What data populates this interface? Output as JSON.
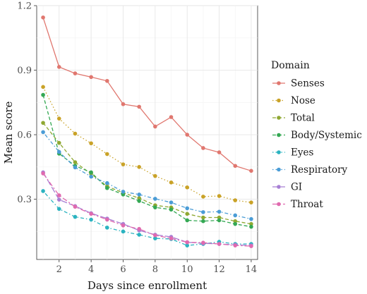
{
  "chart_data": {
    "type": "line",
    "xlabel": "Days since enrollment",
    "ylabel": "Mean score",
    "xlim": [
      0.6,
      14.4
    ],
    "ylim": [
      0.02,
      1.2
    ],
    "x_ticks": [
      2,
      4,
      6,
      8,
      10,
      12,
      14
    ],
    "y_ticks": [
      0.3,
      0.6,
      0.9,
      1.2
    ],
    "x_tick_labels": [
      "2",
      "4",
      "6",
      "8",
      "10",
      "12",
      "14"
    ],
    "y_tick_labels": [
      "0.3",
      "0.6",
      "0.9",
      "1.2"
    ],
    "grid": true,
    "legend_title": "Domain",
    "legend_position": "right",
    "x": [
      1,
      2,
      3,
      4,
      5,
      6,
      7,
      8,
      9,
      10,
      11,
      12,
      13,
      14
    ],
    "series": [
      {
        "name": "Senses",
        "color": "#E0776F",
        "dash": "solid",
        "values": [
          1.145,
          0.915,
          0.885,
          0.868,
          0.85,
          0.742,
          0.73,
          0.638,
          0.682,
          0.6,
          0.538,
          0.518,
          0.455,
          0.432
        ]
      },
      {
        "name": "Nose",
        "color": "#C9A227",
        "dash": "dotted",
        "values": [
          0.822,
          0.675,
          0.605,
          0.56,
          0.51,
          0.462,
          0.45,
          0.408,
          0.378,
          0.355,
          0.312,
          0.315,
          0.295,
          0.285
        ]
      },
      {
        "name": "Total",
        "color": "#8FA832",
        "dash": "dashed",
        "values": [
          0.655,
          0.562,
          0.472,
          0.418,
          0.36,
          0.33,
          0.305,
          0.272,
          0.262,
          0.232,
          0.215,
          0.215,
          0.198,
          0.185
        ]
      },
      {
        "name": "Body/Systemic",
        "color": "#34A853",
        "dash": "dashed",
        "values": [
          0.785,
          0.512,
          0.455,
          0.425,
          0.352,
          0.322,
          0.292,
          0.262,
          0.252,
          0.202,
          0.198,
          0.202,
          0.185,
          0.172
        ]
      },
      {
        "name": "Eyes",
        "color": "#2BB3C0",
        "dash": "dotdash",
        "values": [
          0.338,
          0.255,
          0.218,
          0.205,
          0.168,
          0.15,
          0.135,
          0.118,
          0.115,
          0.085,
          0.092,
          0.102,
          0.092,
          0.092
        ]
      },
      {
        "name": "Respiratory",
        "color": "#4A9CD6",
        "dash": "dotdash",
        "values": [
          0.612,
          0.52,
          0.448,
          0.405,
          0.375,
          0.335,
          0.322,
          0.302,
          0.285,
          0.258,
          0.24,
          0.242,
          0.225,
          0.208
        ]
      },
      {
        "name": "GI",
        "color": "#A77FD4",
        "dash": "longdash",
        "values": [
          0.425,
          0.298,
          0.268,
          0.235,
          0.21,
          0.185,
          0.155,
          0.135,
          0.125,
          0.1,
          0.095,
          0.092,
          0.088,
          0.085
        ]
      },
      {
        "name": "Throat",
        "color": "#E06AAF",
        "dash": "twodash",
        "values": [
          0.42,
          0.318,
          0.265,
          0.232,
          0.205,
          0.178,
          0.162,
          0.132,
          0.118,
          0.1,
          0.098,
          0.092,
          0.085,
          0.082
        ]
      }
    ]
  }
}
